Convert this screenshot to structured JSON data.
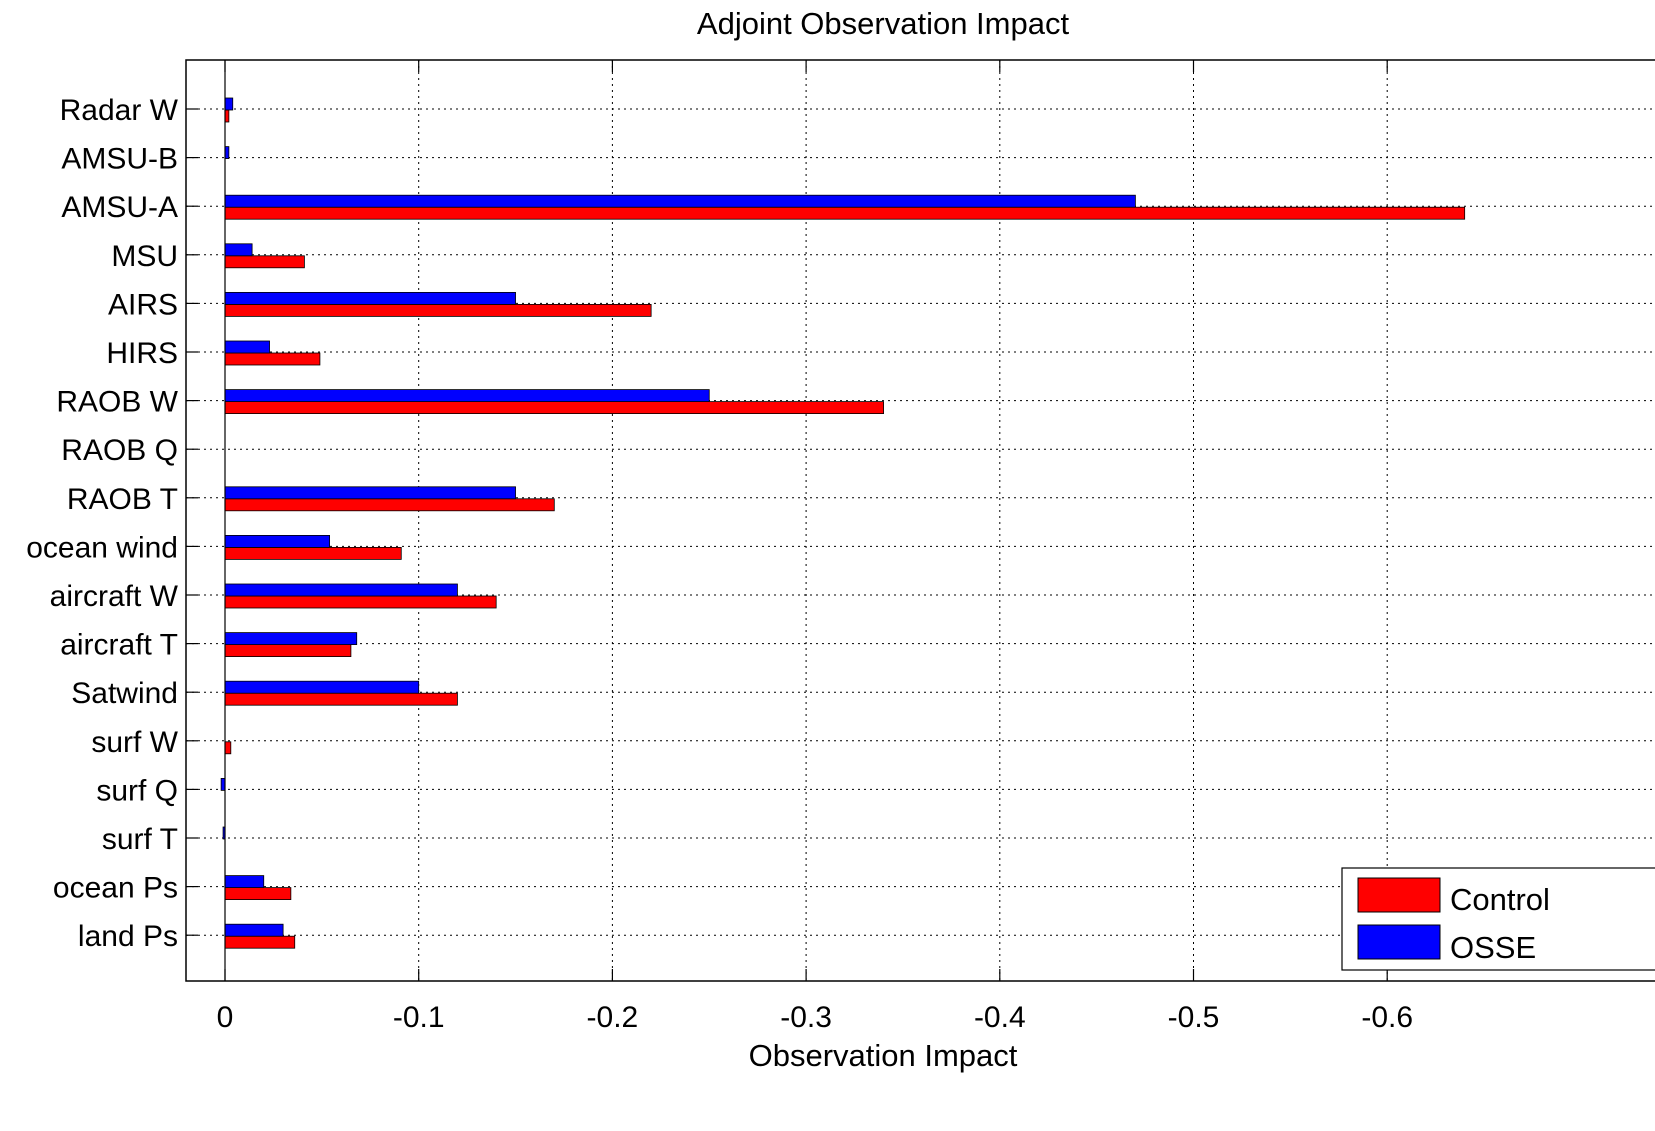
{
  "chart_data": {
    "type": "bar",
    "orientation": "horizontal",
    "title": "Adjoint Observation Impact",
    "xlabel": "Observation Impact",
    "ylabel": "",
    "xlim": [
      0.02,
      -0.7
    ],
    "x_axis_reversed": true,
    "xticks": [
      0,
      -0.1,
      -0.2,
      -0.3,
      -0.4,
      -0.5,
      -0.6
    ],
    "xtick_labels": [
      "0",
      "-0.1",
      "-0.2",
      "-0.3",
      "-0.4",
      "-0.5",
      "-0.6"
    ],
    "grid": true,
    "legend_position": "bottom-right",
    "categories": [
      "Radar W",
      "AMSU-B",
      "AMSU-A",
      "MSU",
      "AIRS",
      "HIRS",
      "RAOB W",
      "RAOB Q",
      "RAOB T",
      "ocean wind",
      "aircraft W",
      "aircraft T",
      "Satwind",
      "surf W",
      "surf Q",
      "surf T",
      "ocean Ps",
      "land Ps"
    ],
    "series": [
      {
        "name": "Control",
        "color": "#ff0000",
        "values": [
          -0.002,
          0,
          -0.64,
          -0.041,
          -0.22,
          -0.049,
          -0.34,
          0,
          -0.17,
          -0.091,
          -0.14,
          -0.065,
          -0.12,
          -0.003,
          0,
          0,
          -0.034,
          -0.036
        ]
      },
      {
        "name": "OSSE",
        "color": "#0000ff",
        "values": [
          -0.004,
          -0.002,
          -0.47,
          -0.014,
          -0.15,
          -0.023,
          -0.25,
          0,
          -0.15,
          -0.054,
          -0.12,
          -0.068,
          -0.1,
          0,
          0.002,
          0.001,
          -0.02,
          -0.03
        ]
      }
    ]
  }
}
